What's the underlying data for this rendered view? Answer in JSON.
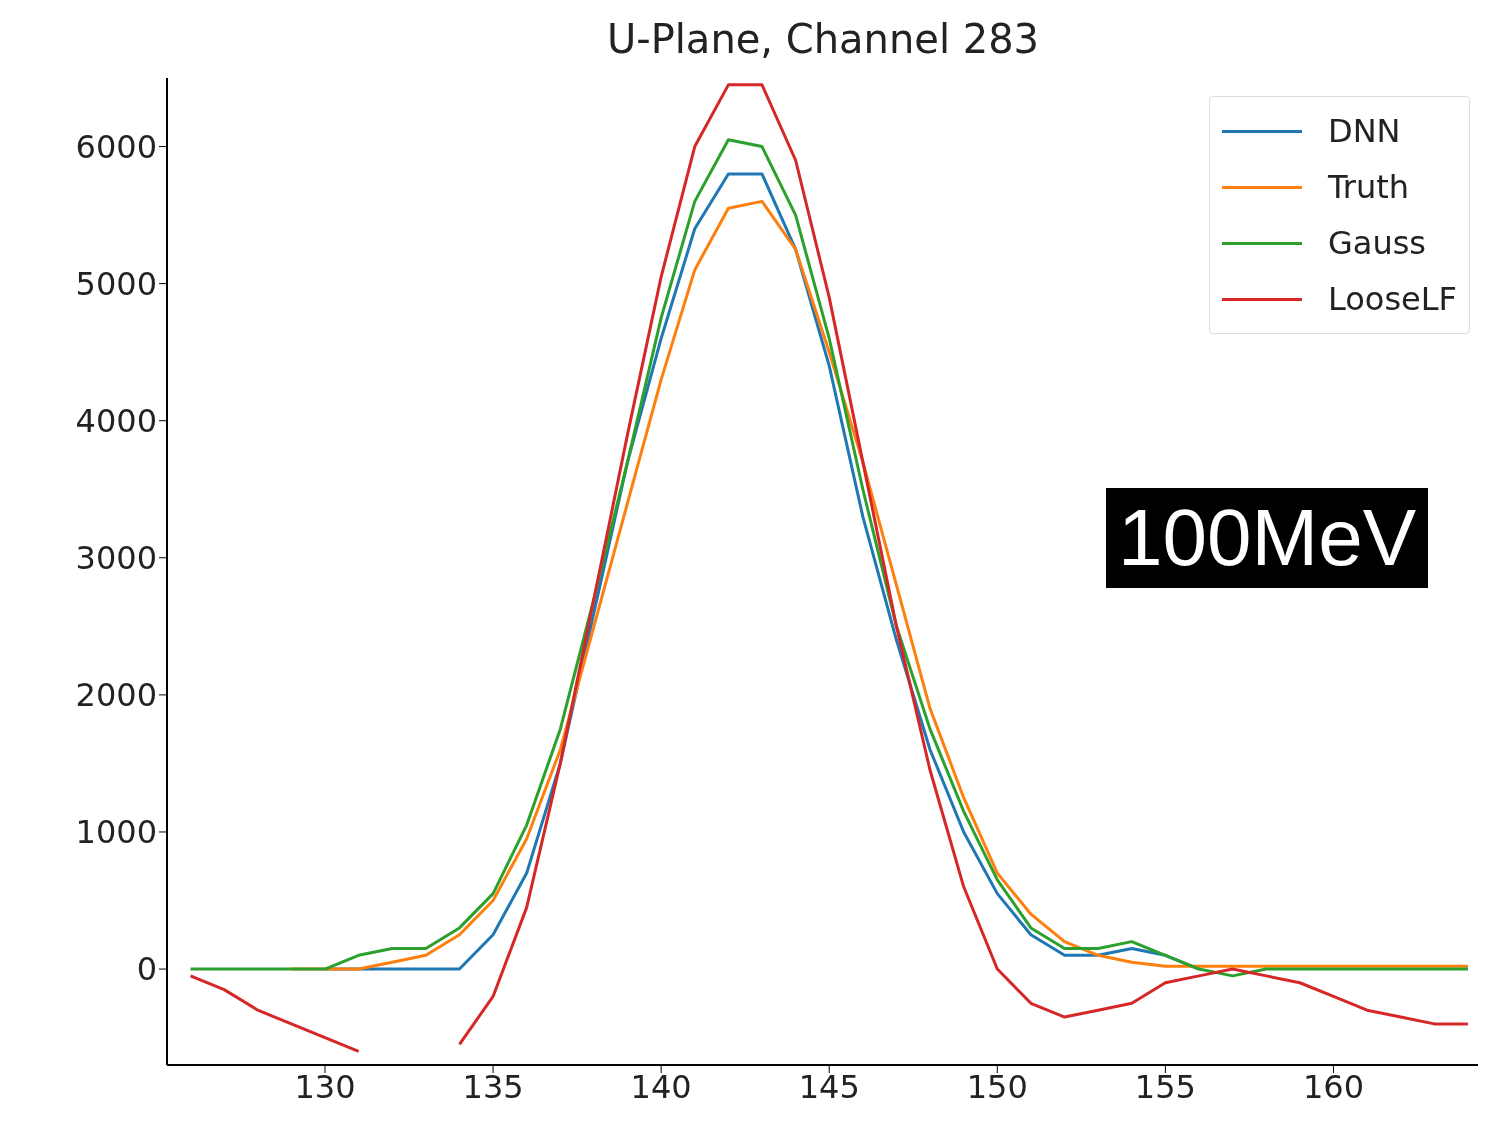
{
  "chart_data": {
    "type": "line",
    "title": "U-Plane, Channel 283",
    "x": [
      126,
      127,
      128,
      129,
      130,
      131,
      132,
      133,
      134,
      135,
      136,
      137,
      138,
      139,
      140,
      141,
      142,
      143,
      144,
      145,
      146,
      147,
      148,
      149,
      150,
      151,
      152,
      153,
      154,
      155,
      156,
      157,
      158,
      159,
      160,
      161,
      162,
      163,
      164
    ],
    "series": [
      {
        "name": "DNN",
        "color": "#1f77b4",
        "values": [
          null,
          null,
          null,
          null,
          0,
          0,
          0,
          0,
          0,
          250,
          700,
          1500,
          2600,
          3700,
          4600,
          5400,
          5800,
          5800,
          5250,
          4400,
          3300,
          2400,
          1600,
          1000,
          550,
          250,
          100,
          100,
          150,
          100,
          0,
          null,
          null,
          null,
          null,
          null,
          null,
          null,
          null
        ]
      },
      {
        "name": "Truth",
        "color": "#ff7f0e",
        "values": [
          null,
          null,
          null,
          0,
          0,
          0,
          50,
          100,
          250,
          500,
          950,
          1600,
          2500,
          3400,
          4300,
          5100,
          5550,
          5600,
          5250,
          4500,
          3700,
          2800,
          1900,
          1250,
          700,
          400,
          200,
          100,
          50,
          20,
          20,
          20,
          20,
          20,
          20,
          20,
          20,
          20,
          20
        ]
      },
      {
        "name": "Gauss",
        "color": "#2ca02c",
        "values": [
          0,
          0,
          0,
          0,
          0,
          100,
          150,
          150,
          300,
          550,
          1050,
          1750,
          2700,
          3700,
          4750,
          5600,
          6050,
          6000,
          5500,
          4600,
          3500,
          2500,
          1750,
          1150,
          650,
          300,
          150,
          150,
          200,
          100,
          0,
          -50,
          0,
          0,
          0,
          0,
          0,
          0,
          0
        ]
      },
      {
        "name": "LooseLF",
        "color": "#d62728",
        "values": [
          -50,
          -150,
          -300,
          -400,
          -500,
          -600,
          null,
          null,
          -550,
          -200,
          450,
          1500,
          2700,
          3900,
          5050,
          6000,
          6450,
          6450,
          5900,
          4900,
          3700,
          2500,
          1450,
          600,
          0,
          -250,
          -350,
          -300,
          -250,
          -100,
          -50,
          0,
          -50,
          -100,
          -200,
          -300,
          -350,
          -400,
          -400
        ]
      }
    ],
    "xlim": [
      125.3,
      164.3
    ],
    "ylim": [
      -700,
      6500
    ],
    "xticks": [
      130,
      135,
      140,
      145,
      150,
      155,
      160
    ],
    "yticks": [
      0,
      1000,
      2000,
      3000,
      4000,
      5000,
      6000
    ],
    "grid": false,
    "legend": "top right",
    "marker": "none",
    "line_style": "solid",
    "annotations": [
      "100MeV"
    ]
  }
}
